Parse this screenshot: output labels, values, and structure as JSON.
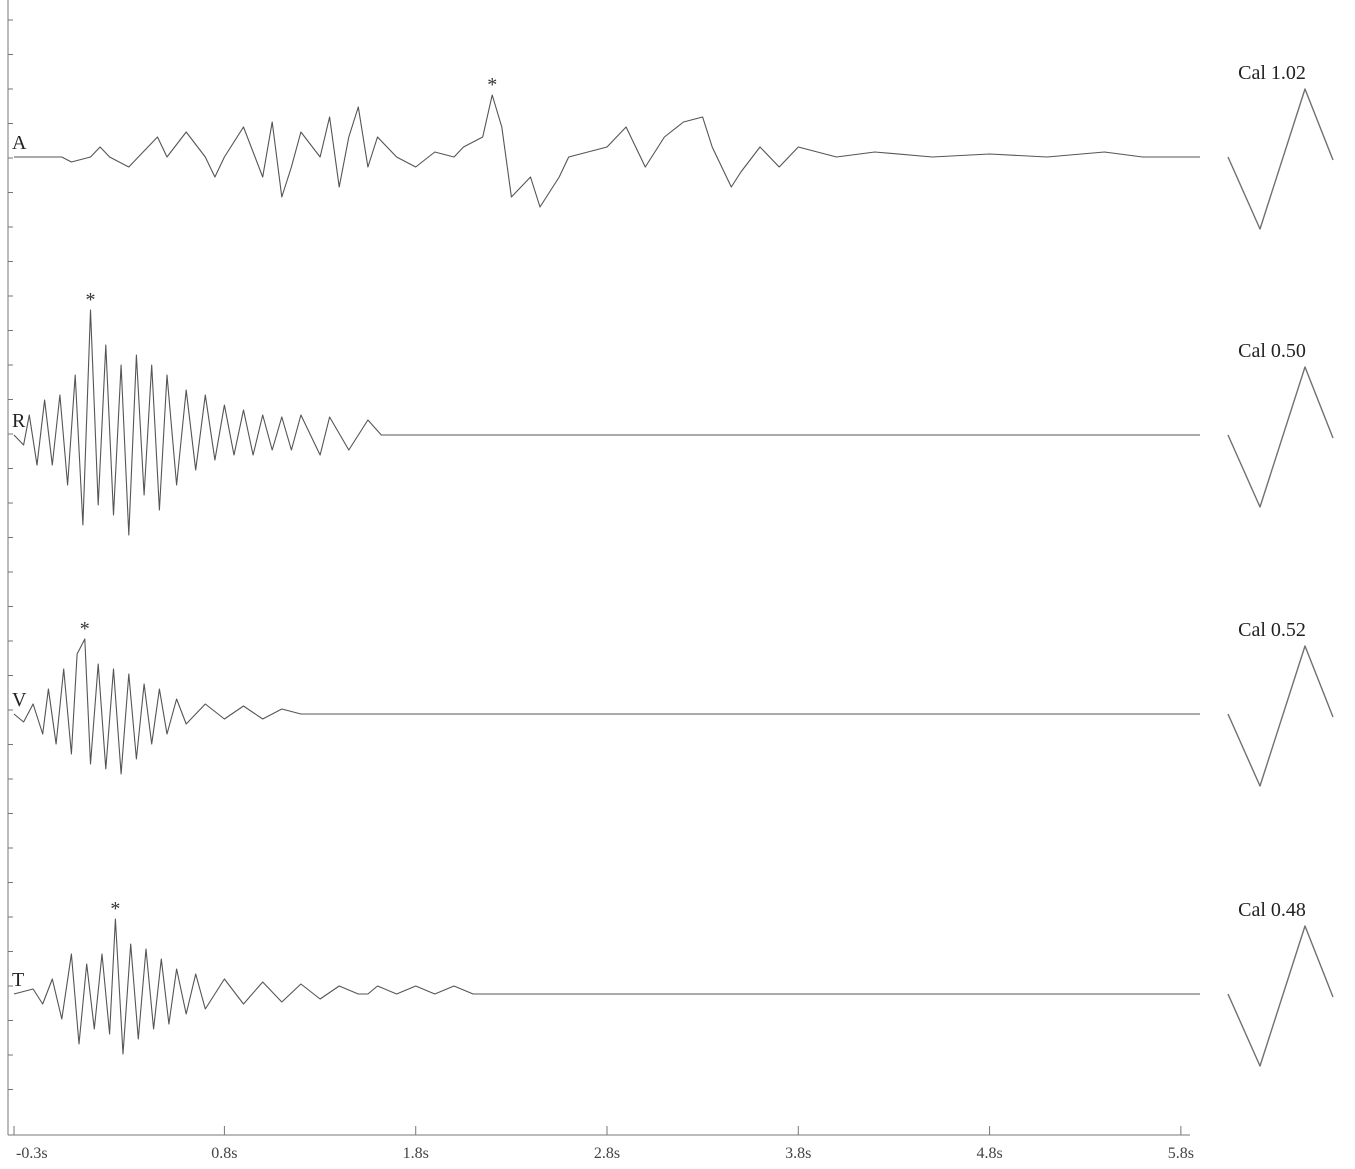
{
  "chart_data": {
    "type": "line",
    "x_unit": "s",
    "xlim": [
      -0.3,
      5.9
    ],
    "x_ticks": [
      "-0.3s",
      "0.8s",
      "1.8s",
      "2.8s",
      "3.8s",
      "4.8s",
      "5.8s"
    ],
    "x_tick_values": [
      -0.3,
      0.8,
      1.8,
      2.8,
      3.8,
      4.8,
      5.8
    ],
    "grid": false,
    "series": [
      {
        "name": "A",
        "calibration_label": "Cal 1.02",
        "peak_marker": "*",
        "peak_time": 2.2,
        "points": [
          [
            -0.3,
            0
          ],
          [
            -0.05,
            0
          ],
          [
            0,
            -0.05
          ],
          [
            0.1,
            0
          ],
          [
            0.15,
            0.1
          ],
          [
            0.2,
            0
          ],
          [
            0.3,
            -0.1
          ],
          [
            0.4,
            0.1
          ],
          [
            0.45,
            0.2
          ],
          [
            0.5,
            0
          ],
          [
            0.6,
            0.25
          ],
          [
            0.7,
            0
          ],
          [
            0.75,
            -0.2
          ],
          [
            0.8,
            0
          ],
          [
            0.9,
            0.3
          ],
          [
            1.0,
            -0.2
          ],
          [
            1.05,
            0.35
          ],
          [
            1.1,
            -0.4
          ],
          [
            1.15,
            -0.1
          ],
          [
            1.2,
            0.25
          ],
          [
            1.3,
            0
          ],
          [
            1.35,
            0.4
          ],
          [
            1.4,
            -0.3
          ],
          [
            1.45,
            0.2
          ],
          [
            1.5,
            0.5
          ],
          [
            1.55,
            -0.1
          ],
          [
            1.6,
            0.2
          ],
          [
            1.7,
            0
          ],
          [
            1.8,
            -0.1
          ],
          [
            1.9,
            0.05
          ],
          [
            2.0,
            0
          ],
          [
            2.05,
            0.1
          ],
          [
            2.15,
            0.2
          ],
          [
            2.2,
            0.62
          ],
          [
            2.25,
            0.3
          ],
          [
            2.3,
            -0.4
          ],
          [
            2.4,
            -0.2
          ],
          [
            2.45,
            -0.5
          ],
          [
            2.55,
            -0.2
          ],
          [
            2.6,
            0
          ],
          [
            2.7,
            0.05
          ],
          [
            2.8,
            0.1
          ],
          [
            2.9,
            0.3
          ],
          [
            3.0,
            -0.1
          ],
          [
            3.1,
            0.2
          ],
          [
            3.2,
            0.35
          ],
          [
            3.3,
            0.4
          ],
          [
            3.35,
            0.1
          ],
          [
            3.45,
            -0.3
          ],
          [
            3.5,
            -0.15
          ],
          [
            3.6,
            0.1
          ],
          [
            3.7,
            -0.1
          ],
          [
            3.8,
            0.1
          ],
          [
            3.9,
            0.05
          ],
          [
            4.0,
            0
          ],
          [
            4.2,
            0.05
          ],
          [
            4.5,
            0
          ],
          [
            4.8,
            0.03
          ],
          [
            5.1,
            0
          ],
          [
            5.4,
            0.05
          ],
          [
            5.6,
            0
          ],
          [
            5.9,
            0
          ]
        ]
      },
      {
        "name": "R",
        "calibration_label": "Cal 0.50",
        "peak_marker": "*",
        "peak_time": 0.1,
        "points": [
          [
            -0.3,
            0
          ],
          [
            -0.25,
            -0.1
          ],
          [
            -0.22,
            0.2
          ],
          [
            -0.18,
            -0.3
          ],
          [
            -0.14,
            0.35
          ],
          [
            -0.1,
            -0.3
          ],
          [
            -0.06,
            0.4
          ],
          [
            -0.02,
            -0.5
          ],
          [
            0.02,
            0.6
          ],
          [
            0.06,
            -0.9
          ],
          [
            0.1,
            1.25
          ],
          [
            0.14,
            -0.7
          ],
          [
            0.18,
            0.9
          ],
          [
            0.22,
            -0.8
          ],
          [
            0.26,
            0.7
          ],
          [
            0.3,
            -1.0
          ],
          [
            0.34,
            0.8
          ],
          [
            0.38,
            -0.6
          ],
          [
            0.42,
            0.7
          ],
          [
            0.46,
            -0.75
          ],
          [
            0.5,
            0.6
          ],
          [
            0.55,
            -0.5
          ],
          [
            0.6,
            0.45
          ],
          [
            0.65,
            -0.35
          ],
          [
            0.7,
            0.4
          ],
          [
            0.75,
            -0.25
          ],
          [
            0.8,
            0.3
          ],
          [
            0.85,
            -0.2
          ],
          [
            0.9,
            0.25
          ],
          [
            0.95,
            -0.2
          ],
          [
            1.0,
            0.2
          ],
          [
            1.05,
            -0.15
          ],
          [
            1.1,
            0.18
          ],
          [
            1.15,
            -0.15
          ],
          [
            1.2,
            0.2
          ],
          [
            1.3,
            -0.2
          ],
          [
            1.35,
            0.18
          ],
          [
            1.45,
            -0.15
          ],
          [
            1.55,
            0.15
          ],
          [
            1.62,
            0
          ],
          [
            5.9,
            0
          ]
        ]
      },
      {
        "name": "V",
        "calibration_label": "Cal 0.52",
        "peak_marker": "*",
        "peak_time": 0.07,
        "points": [
          [
            -0.3,
            0
          ],
          [
            -0.25,
            -0.08
          ],
          [
            -0.2,
            0.1
          ],
          [
            -0.15,
            -0.2
          ],
          [
            -0.12,
            0.25
          ],
          [
            -0.08,
            -0.3
          ],
          [
            -0.04,
            0.45
          ],
          [
            0,
            -0.4
          ],
          [
            0.03,
            0.6
          ],
          [
            0.07,
            0.75
          ],
          [
            0.1,
            -0.5
          ],
          [
            0.14,
            0.5
          ],
          [
            0.18,
            -0.55
          ],
          [
            0.22,
            0.45
          ],
          [
            0.26,
            -0.6
          ],
          [
            0.3,
            0.4
          ],
          [
            0.34,
            -0.45
          ],
          [
            0.38,
            0.3
          ],
          [
            0.42,
            -0.3
          ],
          [
            0.46,
            0.25
          ],
          [
            0.5,
            -0.2
          ],
          [
            0.55,
            0.15
          ],
          [
            0.6,
            -0.1
          ],
          [
            0.7,
            0.1
          ],
          [
            0.8,
            -0.05
          ],
          [
            0.9,
            0.08
          ],
          [
            1.0,
            -0.05
          ],
          [
            1.1,
            0.05
          ],
          [
            1.2,
            0
          ],
          [
            5.9,
            0
          ]
        ]
      },
      {
        "name": "T",
        "calibration_label": "Cal 0.48",
        "peak_marker": "*",
        "peak_time": 0.23,
        "points": [
          [
            -0.3,
            0
          ],
          [
            -0.2,
            0.05
          ],
          [
            -0.15,
            -0.1
          ],
          [
            -0.1,
            0.15
          ],
          [
            -0.05,
            -0.25
          ],
          [
            0,
            0.4
          ],
          [
            0.04,
            -0.5
          ],
          [
            0.08,
            0.3
          ],
          [
            0.12,
            -0.35
          ],
          [
            0.16,
            0.4
          ],
          [
            0.2,
            -0.4
          ],
          [
            0.23,
            0.75
          ],
          [
            0.27,
            -0.6
          ],
          [
            0.31,
            0.5
          ],
          [
            0.35,
            -0.45
          ],
          [
            0.39,
            0.45
          ],
          [
            0.43,
            -0.35
          ],
          [
            0.47,
            0.35
          ],
          [
            0.51,
            -0.3
          ],
          [
            0.55,
            0.25
          ],
          [
            0.6,
            -0.2
          ],
          [
            0.65,
            0.2
          ],
          [
            0.7,
            -0.15
          ],
          [
            0.8,
            0.15
          ],
          [
            0.9,
            -0.1
          ],
          [
            1.0,
            0.12
          ],
          [
            1.1,
            -0.08
          ],
          [
            1.2,
            0.1
          ],
          [
            1.3,
            -0.05
          ],
          [
            1.4,
            0.08
          ],
          [
            1.5,
            0
          ],
          [
            1.55,
            0
          ],
          [
            1.6,
            0.08
          ],
          [
            1.7,
            0
          ],
          [
            1.8,
            0.08
          ],
          [
            1.9,
            0
          ],
          [
            2.0,
            0.08
          ],
          [
            2.1,
            0
          ],
          [
            5.9,
            0
          ]
        ]
      }
    ]
  }
}
